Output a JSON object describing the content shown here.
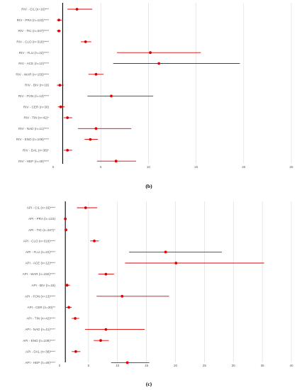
{
  "chart_data": [
    {
      "type": "scatter",
      "panel_label": "(b)",
      "xlim": [
        0,
        25
      ],
      "x_ticks": [
        0,
        5,
        10,
        15,
        20,
        25
      ],
      "grid": true,
      "reference_line_x": 1,
      "categories": [
        "RIV - CIL (n=16)***",
        "RIV - PRA (n=123)****",
        "RIV - TIC (n=347)****",
        "RIV - CLO (n=318)****",
        "RIV - FLU (n=22)****",
        "RIV - ACE (n=12)****",
        "RIV - WAR (n=150)****",
        "RIV - BIV (n=18)",
        "RIV - FON (n=13)****",
        "RIV - CER (n=30)",
        "RIV - TIN (n=42)*",
        "RIV - NAD (n=11)****",
        "RIV - ENO (n=109)****",
        "RIV - DAL (n=38)*",
        "RIV - HEP (n=49)****"
      ],
      "series": [
        {
          "estimate": [
            2.5,
            0.6,
            0.6,
            3.4,
            10.2,
            11.1,
            4.5,
            0.7,
            6.1,
            0.8,
            1.5,
            4.5,
            3.9,
            1.5,
            6.6
          ],
          "lower": [
            1.5,
            0.4,
            0.4,
            2.9,
            6.7,
            6.3,
            3.7,
            0.4,
            3.6,
            0.5,
            1.1,
            2.6,
            3.3,
            1.1,
            4.6
          ],
          "upper": [
            4.1,
            0.9,
            0.8,
            4.0,
            15.5,
            19.6,
            5.3,
            1.1,
            10.5,
            1.2,
            2.0,
            8.2,
            4.7,
            2.0,
            8.7
          ]
        }
      ]
    },
    {
      "type": "scatter",
      "panel_label": "(c)",
      "xlim": [
        0,
        40
      ],
      "x_ticks": [
        0,
        5,
        10,
        15,
        20,
        25,
        30,
        35,
        40
      ],
      "grid": true,
      "reference_line_x": 1,
      "categories": [
        "API - CIL (n=16)****",
        "API - PRA (n=123)",
        "API - TIC (n=347)*",
        "API - CLO (n=318)****",
        "API - FLU (n=22)****",
        "API - ACE (n=12)****",
        "API - WAR (n=150)****",
        "API - BIV (n=18)",
        "API - FON (n=13)****",
        "API - CER (n=30)**",
        "API - TIN (n=42)****",
        "API - NAD (n=11)****",
        "API - ENO (n=109)****",
        "API - DAL (n=38)****",
        "API - HEP (n=49)****"
      ],
      "series": [
        {
          "estimate": [
            4.5,
            1.0,
            1.1,
            6.0,
            18.3,
            20.1,
            8.0,
            1.3,
            10.8,
            1.6,
            2.7,
            8.0,
            7.1,
            2.8,
            11.7
          ],
          "lower": [
            3.0,
            0.8,
            0.9,
            5.3,
            12.0,
            11.3,
            6.7,
            0.9,
            6.4,
            1.1,
            2.1,
            4.4,
            5.9,
            2.1,
            8.9
          ],
          "upper": [
            6.5,
            1.2,
            1.3,
            6.8,
            28.0,
            35.3,
            9.4,
            1.8,
            18.9,
            2.1,
            3.4,
            14.7,
            8.5,
            3.6,
            15.5
          ]
        }
      ]
    }
  ]
}
